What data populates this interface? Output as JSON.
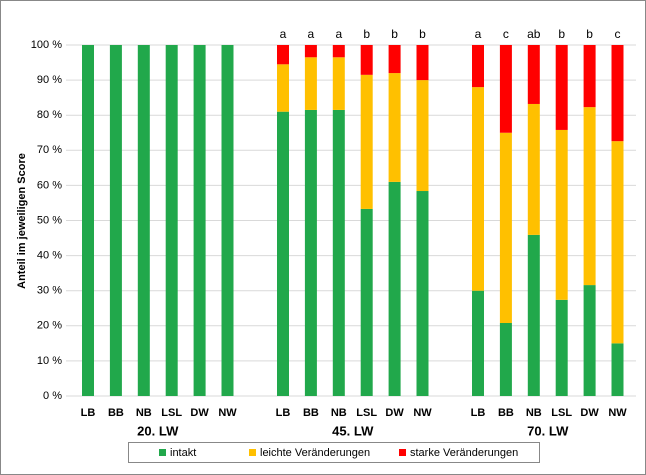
{
  "chart_data": {
    "type": "bar",
    "stacked": true,
    "y_label": "Anteil im jeweiligen Score",
    "ylim": [
      0,
      100
    ],
    "yticks": [
      {
        "value": 0,
        "label": "0 %"
      },
      {
        "value": 10,
        "label": "10 %"
      },
      {
        "value": 20,
        "label": "20 %"
      },
      {
        "value": 30,
        "label": "30 %"
      },
      {
        "value": 40,
        "label": "40 %"
      },
      {
        "value": 50,
        "label": "50 %"
      },
      {
        "value": 60,
        "label": "60 %"
      },
      {
        "value": 70,
        "label": "70 %"
      },
      {
        "value": 80,
        "label": "80 %"
      },
      {
        "value": 90,
        "label": "90 %"
      },
      {
        "value": 100,
        "label": "100 %"
      }
    ],
    "grid": true,
    "groups": [
      {
        "name": "20. LW",
        "categories": [
          "LB",
          "BB",
          "NB",
          "LSL",
          "DW",
          "NW"
        ]
      },
      {
        "name": "45. LW",
        "categories": [
          "LB",
          "BB",
          "NB",
          "LSL",
          "DW",
          "NW"
        ],
        "letters": [
          "a",
          "a",
          "a",
          "b",
          "b",
          "b"
        ]
      },
      {
        "name": "70. LW",
        "categories": [
          "LB",
          "BB",
          "NB",
          "LSL",
          "DW",
          "NW"
        ],
        "letters": [
          "a",
          "c",
          "ab",
          "b",
          "b",
          "c"
        ]
      }
    ],
    "series": [
      {
        "name": "intakt",
        "color": "#21a84b",
        "values": [
          100,
          100,
          100,
          100,
          100,
          100,
          81,
          81.5,
          81.5,
          53.3,
          61,
          58.4,
          30,
          20.8,
          45.9,
          27.4,
          31.6,
          15
        ]
      },
      {
        "name": "leichte Veränderungen",
        "color": "#ffc000",
        "values": [
          0,
          0,
          0,
          0,
          0,
          0,
          13.5,
          15,
          15,
          38.2,
          31,
          31.6,
          58,
          54.2,
          37.3,
          48.4,
          50.7,
          57.6
        ]
      },
      {
        "name": "starke Veränderungen",
        "color": "#ff0000",
        "values": [
          0,
          0,
          0,
          0,
          0,
          0,
          5.5,
          3.5,
          3.5,
          8.5,
          8,
          10,
          12,
          25,
          16.8,
          24.2,
          17.7,
          27.4
        ]
      }
    ]
  }
}
